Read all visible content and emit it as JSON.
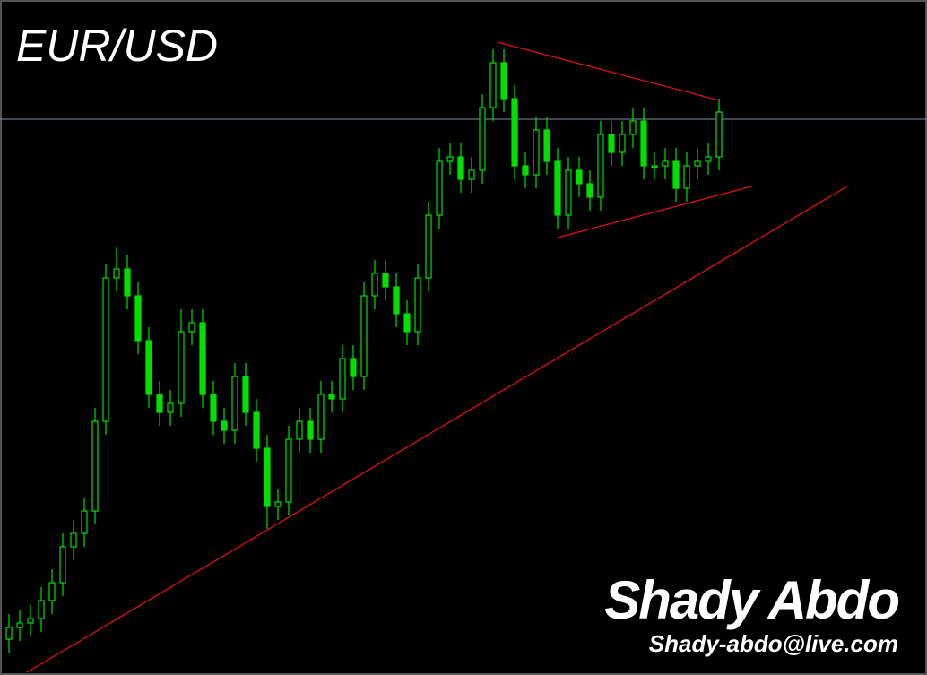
{
  "chart_data": {
    "type": "candlestick",
    "title": "EUR/USD",
    "author": "Shady Abdo",
    "email": "Shady-abdo@live.com",
    "ylim": [
      0,
      753
    ],
    "bull_color": "#00e000",
    "bear_color": "#00e000",
    "open": [
      40,
      53,
      58,
      63,
      83,
      103,
      143,
      158,
      183,
      283,
      443,
      453,
      423,
      373,
      313,
      293,
      303,
      383,
      393,
      313,
      283,
      273,
      333,
      293,
      253,
      188,
      193,
      263,
      283,
      263,
      313,
      308,
      353,
      333,
      423,
      448,
      433,
      403,
      383,
      443,
      513,
      573,
      578,
      553,
      563,
      633,
      683,
      643,
      568,
      558,
      608,
      573,
      513,
      563,
      548,
      533,
      603,
      583,
      603,
      618,
      568,
      568,
      573,
      543,
      568,
      573,
      578
    ],
    "high": [
      68,
      73,
      78,
      98,
      118,
      158,
      173,
      198,
      298,
      458,
      478,
      468,
      438,
      388,
      328,
      318,
      408,
      408,
      408,
      328,
      298,
      348,
      348,
      308,
      268,
      208,
      278,
      298,
      298,
      328,
      328,
      368,
      368,
      438,
      463,
      463,
      448,
      418,
      458,
      528,
      588,
      593,
      593,
      578,
      648,
      698,
      698,
      658,
      583,
      623,
      623,
      588,
      578,
      578,
      563,
      618,
      618,
      618,
      633,
      633,
      583,
      588,
      588,
      583,
      588,
      593,
      643
    ],
    "low": [
      25,
      38,
      43,
      48,
      68,
      88,
      128,
      143,
      168,
      268,
      428,
      408,
      358,
      298,
      278,
      278,
      288,
      368,
      298,
      268,
      258,
      258,
      278,
      238,
      163,
      173,
      178,
      248,
      248,
      248,
      293,
      293,
      318,
      318,
      408,
      418,
      388,
      368,
      368,
      428,
      498,
      558,
      538,
      538,
      548,
      618,
      628,
      553,
      543,
      543,
      558,
      498,
      498,
      533,
      518,
      518,
      568,
      568,
      588,
      553,
      553,
      553,
      528,
      528,
      553,
      558,
      563
    ],
    "close": [
      53,
      58,
      63,
      83,
      103,
      143,
      158,
      183,
      283,
      443,
      453,
      423,
      373,
      313,
      293,
      303,
      383,
      393,
      313,
      283,
      273,
      333,
      293,
      253,
      188,
      193,
      263,
      283,
      263,
      313,
      308,
      353,
      333,
      423,
      448,
      433,
      403,
      383,
      443,
      513,
      573,
      578,
      553,
      563,
      633,
      683,
      643,
      568,
      558,
      608,
      573,
      513,
      563,
      548,
      533,
      603,
      583,
      603,
      618,
      568,
      568,
      573,
      543,
      568,
      573,
      578,
      628
    ],
    "hline": {
      "value": 620,
      "color": "#8090a8"
    },
    "trendlines": [
      {
        "x": [
          1.67,
          77.9
        ],
        "y": [
          3,
          545
        ],
        "color": "#e01010"
      },
      {
        "x": [
          45.4,
          66
        ],
        "y": [
          706,
          641
        ],
        "color": "#e01010"
      },
      {
        "x": [
          51,
          69
        ],
        "y": [
          488,
          545
        ],
        "color": "#e01010"
      }
    ]
  }
}
